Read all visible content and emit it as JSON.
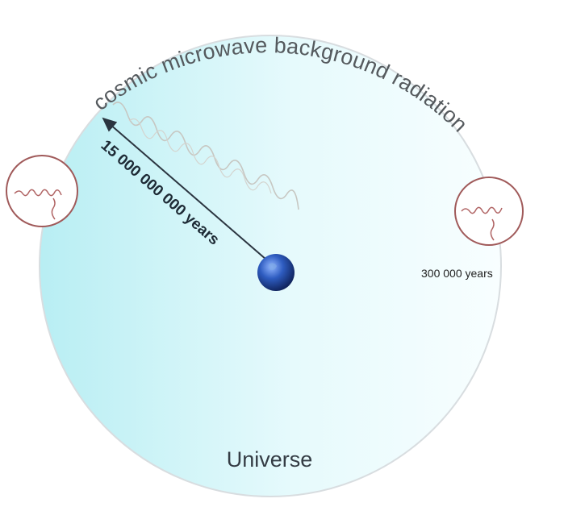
{
  "labels": {
    "cmb": "cosmic microwave background radiation",
    "distance": "15 000 000 000 years",
    "age": "300 000 years",
    "universe": "Universe"
  },
  "icons": {
    "earth": "earth-icon",
    "left_lens": "magnifier-icon",
    "right_lens": "magnifier-icon"
  },
  "colors": {
    "universe_fill_edge": "#b8eef3",
    "universe_fill_center": "#f3fdfe",
    "universe_outline": "#d8dde0",
    "lens_outline": "#a05a5a",
    "wave": "#c7c7c2",
    "arrow": "#2b3540",
    "earth": "#2f5cb3"
  }
}
